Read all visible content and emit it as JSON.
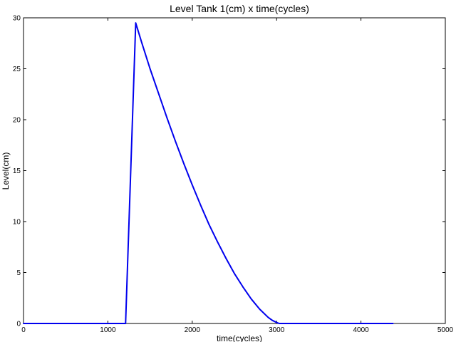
{
  "chart_data": {
    "type": "line",
    "title": "Level Tank 1(cm) x time(cycles)",
    "xlabel": "time(cycles)",
    "ylabel": "Level(cm)",
    "xlim": [
      0,
      5000
    ],
    "ylim": [
      0,
      30
    ],
    "xticks": [
      0,
      1000,
      2000,
      3000,
      4000,
      5000
    ],
    "yticks": [
      0,
      5,
      10,
      15,
      20,
      25,
      30
    ],
    "grid": false,
    "legend": "none",
    "series": [
      {
        "color": "#0000ee",
        "x": [
          0,
          1210,
          1330,
          1400,
          1500,
          1600,
          1700,
          1800,
          1900,
          2000,
          2100,
          2200,
          2300,
          2400,
          2500,
          2600,
          2700,
          2800,
          2900,
          2950,
          3000,
          3030,
          3100,
          3500,
          4000,
          4380
        ],
        "y": [
          0,
          0,
          29.5,
          27.6,
          25.0,
          22.6,
          20.2,
          17.9,
          15.7,
          13.6,
          11.6,
          9.7,
          8.0,
          6.4,
          4.9,
          3.6,
          2.4,
          1.4,
          0.6,
          0.3,
          0.1,
          0,
          0,
          0,
          0,
          0
        ]
      }
    ]
  }
}
